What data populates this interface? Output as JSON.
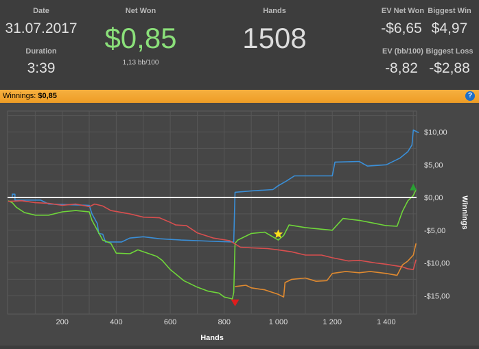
{
  "stats": {
    "date_label": "Date",
    "date_value": "31.07.2017",
    "duration_label": "Duration",
    "duration_value": "3:39",
    "net_won_label": "Net Won",
    "net_won_value": "$0,85",
    "net_won_sub": "1,13 bb/100",
    "hands_label": "Hands",
    "hands_value": "1508",
    "ev_net_won_label": "EV Net Won",
    "ev_net_won_value": "-$6,65",
    "biggest_win_label": "Biggest Win",
    "biggest_win_value": "$4,97",
    "ev_bb_label": "EV (bb/100)",
    "ev_bb_value": "-8,82",
    "biggest_loss_label": "Biggest Loss",
    "biggest_loss_value": "-$2,88"
  },
  "bar": {
    "label": "Winnings:",
    "value": "$0,85",
    "help": "?"
  },
  "colors": {
    "background": "#3d3d3d",
    "plot_bg": "#474747",
    "accent_bar": "#f0a030",
    "net_won_green": "#8be07a",
    "green": "#6fd63a",
    "blue": "#3a8fd8",
    "red": "#d94f4f",
    "orange": "#e08a30",
    "zero_line": "#ffffff"
  },
  "chart_data": {
    "type": "line",
    "xlabel": "Hands",
    "ylabel": "Winnings",
    "xlim": [
      0,
      1510
    ],
    "ylim": [
      -17,
      12
    ],
    "x_ticks": [
      200,
      400,
      600,
      800,
      1000,
      1200,
      1400
    ],
    "x_tick_labels": [
      "200",
      "400",
      "600",
      "800",
      "1 000",
      "1 200",
      "1 400"
    ],
    "y_ticks": [
      10,
      5,
      0,
      -5,
      -10,
      -15
    ],
    "y_tick_labels": [
      "$10,00",
      "$5,00",
      "$0,00",
      "-$5,00",
      "-$10,00",
      "-$15,00"
    ],
    "grid": true,
    "series": [
      {
        "color": "#3a8fd8",
        "points": [
          [
            0,
            0
          ],
          [
            15,
            0
          ],
          [
            15,
            0.5
          ],
          [
            25,
            0.5
          ],
          [
            25,
            -0.4
          ],
          [
            120,
            -0.4
          ],
          [
            150,
            -1
          ],
          [
            300,
            -1.2
          ],
          [
            310,
            -2.5
          ],
          [
            330,
            -4
          ],
          [
            335,
            -5.5
          ],
          [
            350,
            -5.6
          ],
          [
            360,
            -6.8
          ],
          [
            420,
            -6.8
          ],
          [
            450,
            -6.2
          ],
          [
            500,
            -6.0
          ],
          [
            560,
            -6.3
          ],
          [
            640,
            -6.5
          ],
          [
            700,
            -6.6
          ],
          [
            760,
            -6.7
          ],
          [
            835,
            -6.8
          ],
          [
            840,
            0.8
          ],
          [
            900,
            1.0
          ],
          [
            980,
            1.2
          ],
          [
            1000,
            1.8
          ],
          [
            1030,
            2.5
          ],
          [
            1060,
            3.3
          ],
          [
            1200,
            3.3
          ],
          [
            1210,
            5.4
          ],
          [
            1300,
            5.5
          ],
          [
            1330,
            4.8
          ],
          [
            1400,
            5.0
          ],
          [
            1450,
            6.0
          ],
          [
            1480,
            7.0
          ],
          [
            1495,
            8.0
          ],
          [
            1500,
            10.3
          ],
          [
            1520,
            9.9
          ]
        ]
      },
      {
        "color": "#6fd63a",
        "points": [
          [
            0,
            -0.5
          ],
          [
            15,
            -0.8
          ],
          [
            30,
            -1.5
          ],
          [
            60,
            -2.3
          ],
          [
            100,
            -2.7
          ],
          [
            150,
            -2.7
          ],
          [
            200,
            -2.2
          ],
          [
            250,
            -2.0
          ],
          [
            300,
            -2.2
          ],
          [
            310,
            -3.5
          ],
          [
            350,
            -6.5
          ],
          [
            380,
            -7.0
          ],
          [
            400,
            -8.5
          ],
          [
            450,
            -8.6
          ],
          [
            480,
            -8.0
          ],
          [
            550,
            -9.0
          ],
          [
            570,
            -9.6
          ],
          [
            600,
            -11.0
          ],
          [
            650,
            -12.7
          ],
          [
            700,
            -13.7
          ],
          [
            740,
            -14.3
          ],
          [
            780,
            -14.6
          ],
          [
            800,
            -15.2
          ],
          [
            830,
            -15.5
          ],
          [
            835,
            -14.5
          ],
          [
            840,
            -7.0
          ],
          [
            850,
            -6.5
          ],
          [
            900,
            -5.5
          ],
          [
            950,
            -5.3
          ],
          [
            1000,
            -6.5
          ],
          [
            1020,
            -5.8
          ],
          [
            1040,
            -4.2
          ],
          [
            1100,
            -4.6
          ],
          [
            1200,
            -5.0
          ],
          [
            1240,
            -3.2
          ],
          [
            1300,
            -3.5
          ],
          [
            1350,
            -3.9
          ],
          [
            1400,
            -4.3
          ],
          [
            1440,
            -4.4
          ],
          [
            1460,
            -2.1
          ],
          [
            1480,
            -0.5
          ],
          [
            1500,
            0.3
          ],
          [
            1510,
            1.2
          ]
        ]
      },
      {
        "color": "#d94f4f",
        "points": [
          [
            0,
            -0.6
          ],
          [
            50,
            -0.5
          ],
          [
            100,
            -0.8
          ],
          [
            150,
            -0.9
          ],
          [
            200,
            -1.2
          ],
          [
            250,
            -1.0
          ],
          [
            300,
            -1.4
          ],
          [
            320,
            -1.0
          ],
          [
            350,
            -1.3
          ],
          [
            380,
            -2.0
          ],
          [
            450,
            -2.5
          ],
          [
            500,
            -3.0
          ],
          [
            560,
            -3.1
          ],
          [
            600,
            -3.8
          ],
          [
            620,
            -4.2
          ],
          [
            660,
            -4.3
          ],
          [
            700,
            -5.4
          ],
          [
            760,
            -6.2
          ],
          [
            820,
            -6.6
          ],
          [
            860,
            -7.6
          ],
          [
            900,
            -7.7
          ],
          [
            960,
            -7.8
          ],
          [
            1000,
            -8.0
          ],
          [
            1050,
            -8.3
          ],
          [
            1100,
            -8.8
          ],
          [
            1160,
            -8.8
          ],
          [
            1200,
            -9.2
          ],
          [
            1260,
            -9.7
          ],
          [
            1300,
            -9.6
          ],
          [
            1360,
            -10.0
          ],
          [
            1400,
            -10.2
          ],
          [
            1460,
            -10.6
          ],
          [
            1480,
            -10.9
          ],
          [
            1500,
            -11.0
          ],
          [
            1510,
            -9.5
          ]
        ]
      },
      {
        "color": "#e08a30",
        "points": [
          [
            840,
            -13.6
          ],
          [
            880,
            -13.4
          ],
          [
            900,
            -13.8
          ],
          [
            950,
            -14.1
          ],
          [
            1000,
            -14.8
          ],
          [
            1020,
            -15.2
          ],
          [
            1025,
            -13.0
          ],
          [
            1050,
            -12.5
          ],
          [
            1100,
            -12.3
          ],
          [
            1140,
            -12.8
          ],
          [
            1180,
            -12.7
          ],
          [
            1200,
            -11.6
          ],
          [
            1250,
            -11.3
          ],
          [
            1300,
            -11.5
          ],
          [
            1340,
            -11.3
          ],
          [
            1400,
            -11.6
          ],
          [
            1440,
            -11.9
          ],
          [
            1460,
            -10.3
          ],
          [
            1480,
            -9.7
          ],
          [
            1500,
            -8.8
          ],
          [
            1510,
            -7.0
          ]
        ]
      }
    ],
    "zero_line": 0,
    "markers": [
      {
        "kind": "star",
        "x": 1000,
        "y": -5.6,
        "color": "#ffe11a"
      },
      {
        "kind": "down-triangle",
        "x": 840,
        "y": -16.1,
        "color": "#e01c1c"
      },
      {
        "kind": "up-triangle",
        "x": 1500,
        "y": 1.5,
        "color": "#2aa033"
      }
    ]
  }
}
